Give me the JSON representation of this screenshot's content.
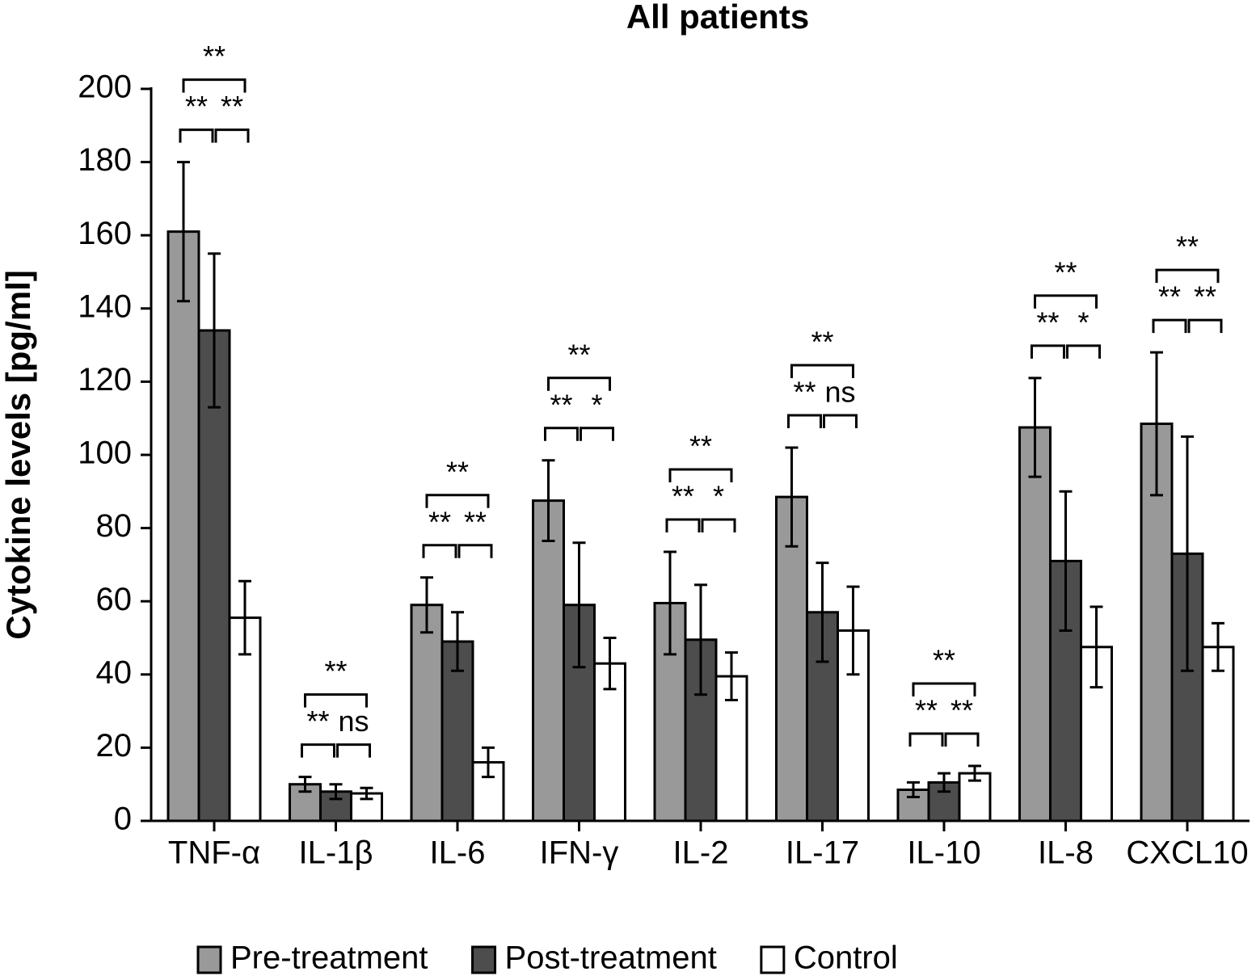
{
  "chart_data": {
    "type": "bar",
    "title": "All patients",
    "y_label": "Cytokine levels [pg/ml]",
    "categories": [
      "TNF-α",
      "IL-1β",
      "IL-6",
      "IFN-γ",
      "IL-2",
      "IL-17",
      "IL-10",
      "IL-8",
      "CXCL10"
    ],
    "series": [
      {
        "name": "Pre-treatment",
        "color": "#999999",
        "values": [
          161,
          10,
          59,
          87.5,
          59.5,
          88.5,
          8.5,
          107.5,
          108.5
        ],
        "errors": [
          19,
          2,
          7.5,
          11,
          14,
          13.5,
          2,
          13.5,
          19.5
        ]
      },
      {
        "name": "Post-treatment",
        "color": "#4d4d4d",
        "values": [
          134,
          8,
          49,
          59,
          49.5,
          57,
          10.5,
          71,
          73
        ],
        "errors": [
          21,
          2,
          8,
          17,
          15,
          13.5,
          2.5,
          19,
          32
        ]
      },
      {
        "name": "Control",
        "color": "#ffffff",
        "values": [
          55.5,
          7.5,
          16,
          43,
          39.5,
          52,
          13,
          47.5,
          47.5
        ],
        "errors": [
          10,
          1.5,
          4,
          7,
          6.5,
          12,
          2,
          11,
          6.5
        ]
      }
    ],
    "significance": [
      {
        "pre_vs_post": "**",
        "post_vs_control": "**",
        "pre_vs_control": "**"
      },
      {
        "pre_vs_post": "**",
        "post_vs_control": "ns",
        "pre_vs_control": "**"
      },
      {
        "pre_vs_post": "**",
        "post_vs_control": "**",
        "pre_vs_control": "**"
      },
      {
        "pre_vs_post": "**",
        "post_vs_control": "*",
        "pre_vs_control": "**"
      },
      {
        "pre_vs_post": "**",
        "post_vs_control": "*",
        "pre_vs_control": "**"
      },
      {
        "pre_vs_post": "**",
        "post_vs_control": "ns",
        "pre_vs_control": "**"
      },
      {
        "pre_vs_post": "**",
        "post_vs_control": "**",
        "pre_vs_control": "**"
      },
      {
        "pre_vs_post": "**",
        "post_vs_control": "*",
        "pre_vs_control": "**"
      },
      {
        "pre_vs_post": "**",
        "post_vs_control": "**",
        "pre_vs_control": "**"
      }
    ],
    "ylim": [
      0,
      200
    ],
    "yticks": [
      0,
      20,
      40,
      60,
      80,
      100,
      120,
      140,
      160,
      180,
      200
    ],
    "grid": false,
    "legend": "bottom"
  }
}
